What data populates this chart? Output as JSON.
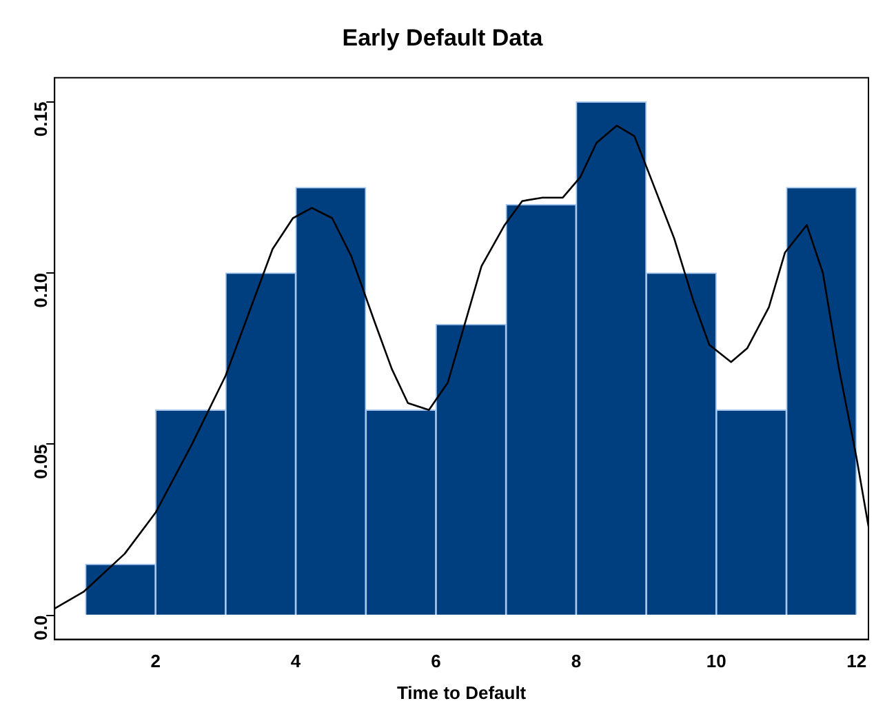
{
  "chart_data": {
    "type": "histogram",
    "title": "Early Default Data",
    "xlabel": "Time to Default",
    "bins": [
      1,
      2,
      3,
      4,
      5,
      6,
      7,
      8,
      9,
      10,
      11,
      12
    ],
    "values": [
      0.015,
      0.06,
      0.1,
      0.125,
      0.06,
      0.085,
      0.12,
      0.15,
      0.1,
      0.06,
      0.125
    ],
    "color": "#003f7f",
    "series": [
      {
        "type": "line",
        "color": "#000000",
        "x": [
          0.56,
          0.98,
          1.56,
          2,
          2.52,
          3,
          3.67,
          3.96,
          4.23,
          4.52,
          4.79,
          5.12,
          5.37,
          5.6,
          5.9,
          6.17,
          6.65,
          6.98,
          7.23,
          7.52,
          7.81,
          8.06,
          8.29,
          8.58,
          8.83,
          9.06,
          9.4,
          9.67,
          9.9,
          10.21,
          10.44,
          10.75,
          10.98,
          11.29,
          11.52,
          11.75,
          12,
          12.17
        ],
        "values": [
          0.002,
          0.007,
          0.018,
          0.03,
          0.05,
          0.07,
          0.107,
          0.116,
          0.119,
          0.116,
          0.105,
          0.086,
          0.072,
          0.062,
          0.06,
          0.068,
          0.102,
          0.114,
          0.121,
          0.122,
          0.122,
          0.128,
          0.138,
          0.143,
          0.14,
          0.128,
          0.11,
          0.092,
          0.079,
          0.074,
          0.078,
          0.09,
          0.106,
          0.114,
          0.1,
          0.072,
          0.046,
          0.026
        ]
      }
    ],
    "xlim": [
      0.56,
      12.17
    ],
    "ylim": [
      -0.007,
      0.157
    ],
    "xticks": [
      2,
      4,
      6,
      8,
      10,
      12
    ],
    "yticks": [
      {
        "value": 0,
        "label": "0.0"
      },
      0.05,
      {
        "value": 0.1,
        "label": "0.10"
      },
      0.15
    ],
    "grid": false,
    "legend": false,
    "marker": "none",
    "line_style": "solid"
  }
}
